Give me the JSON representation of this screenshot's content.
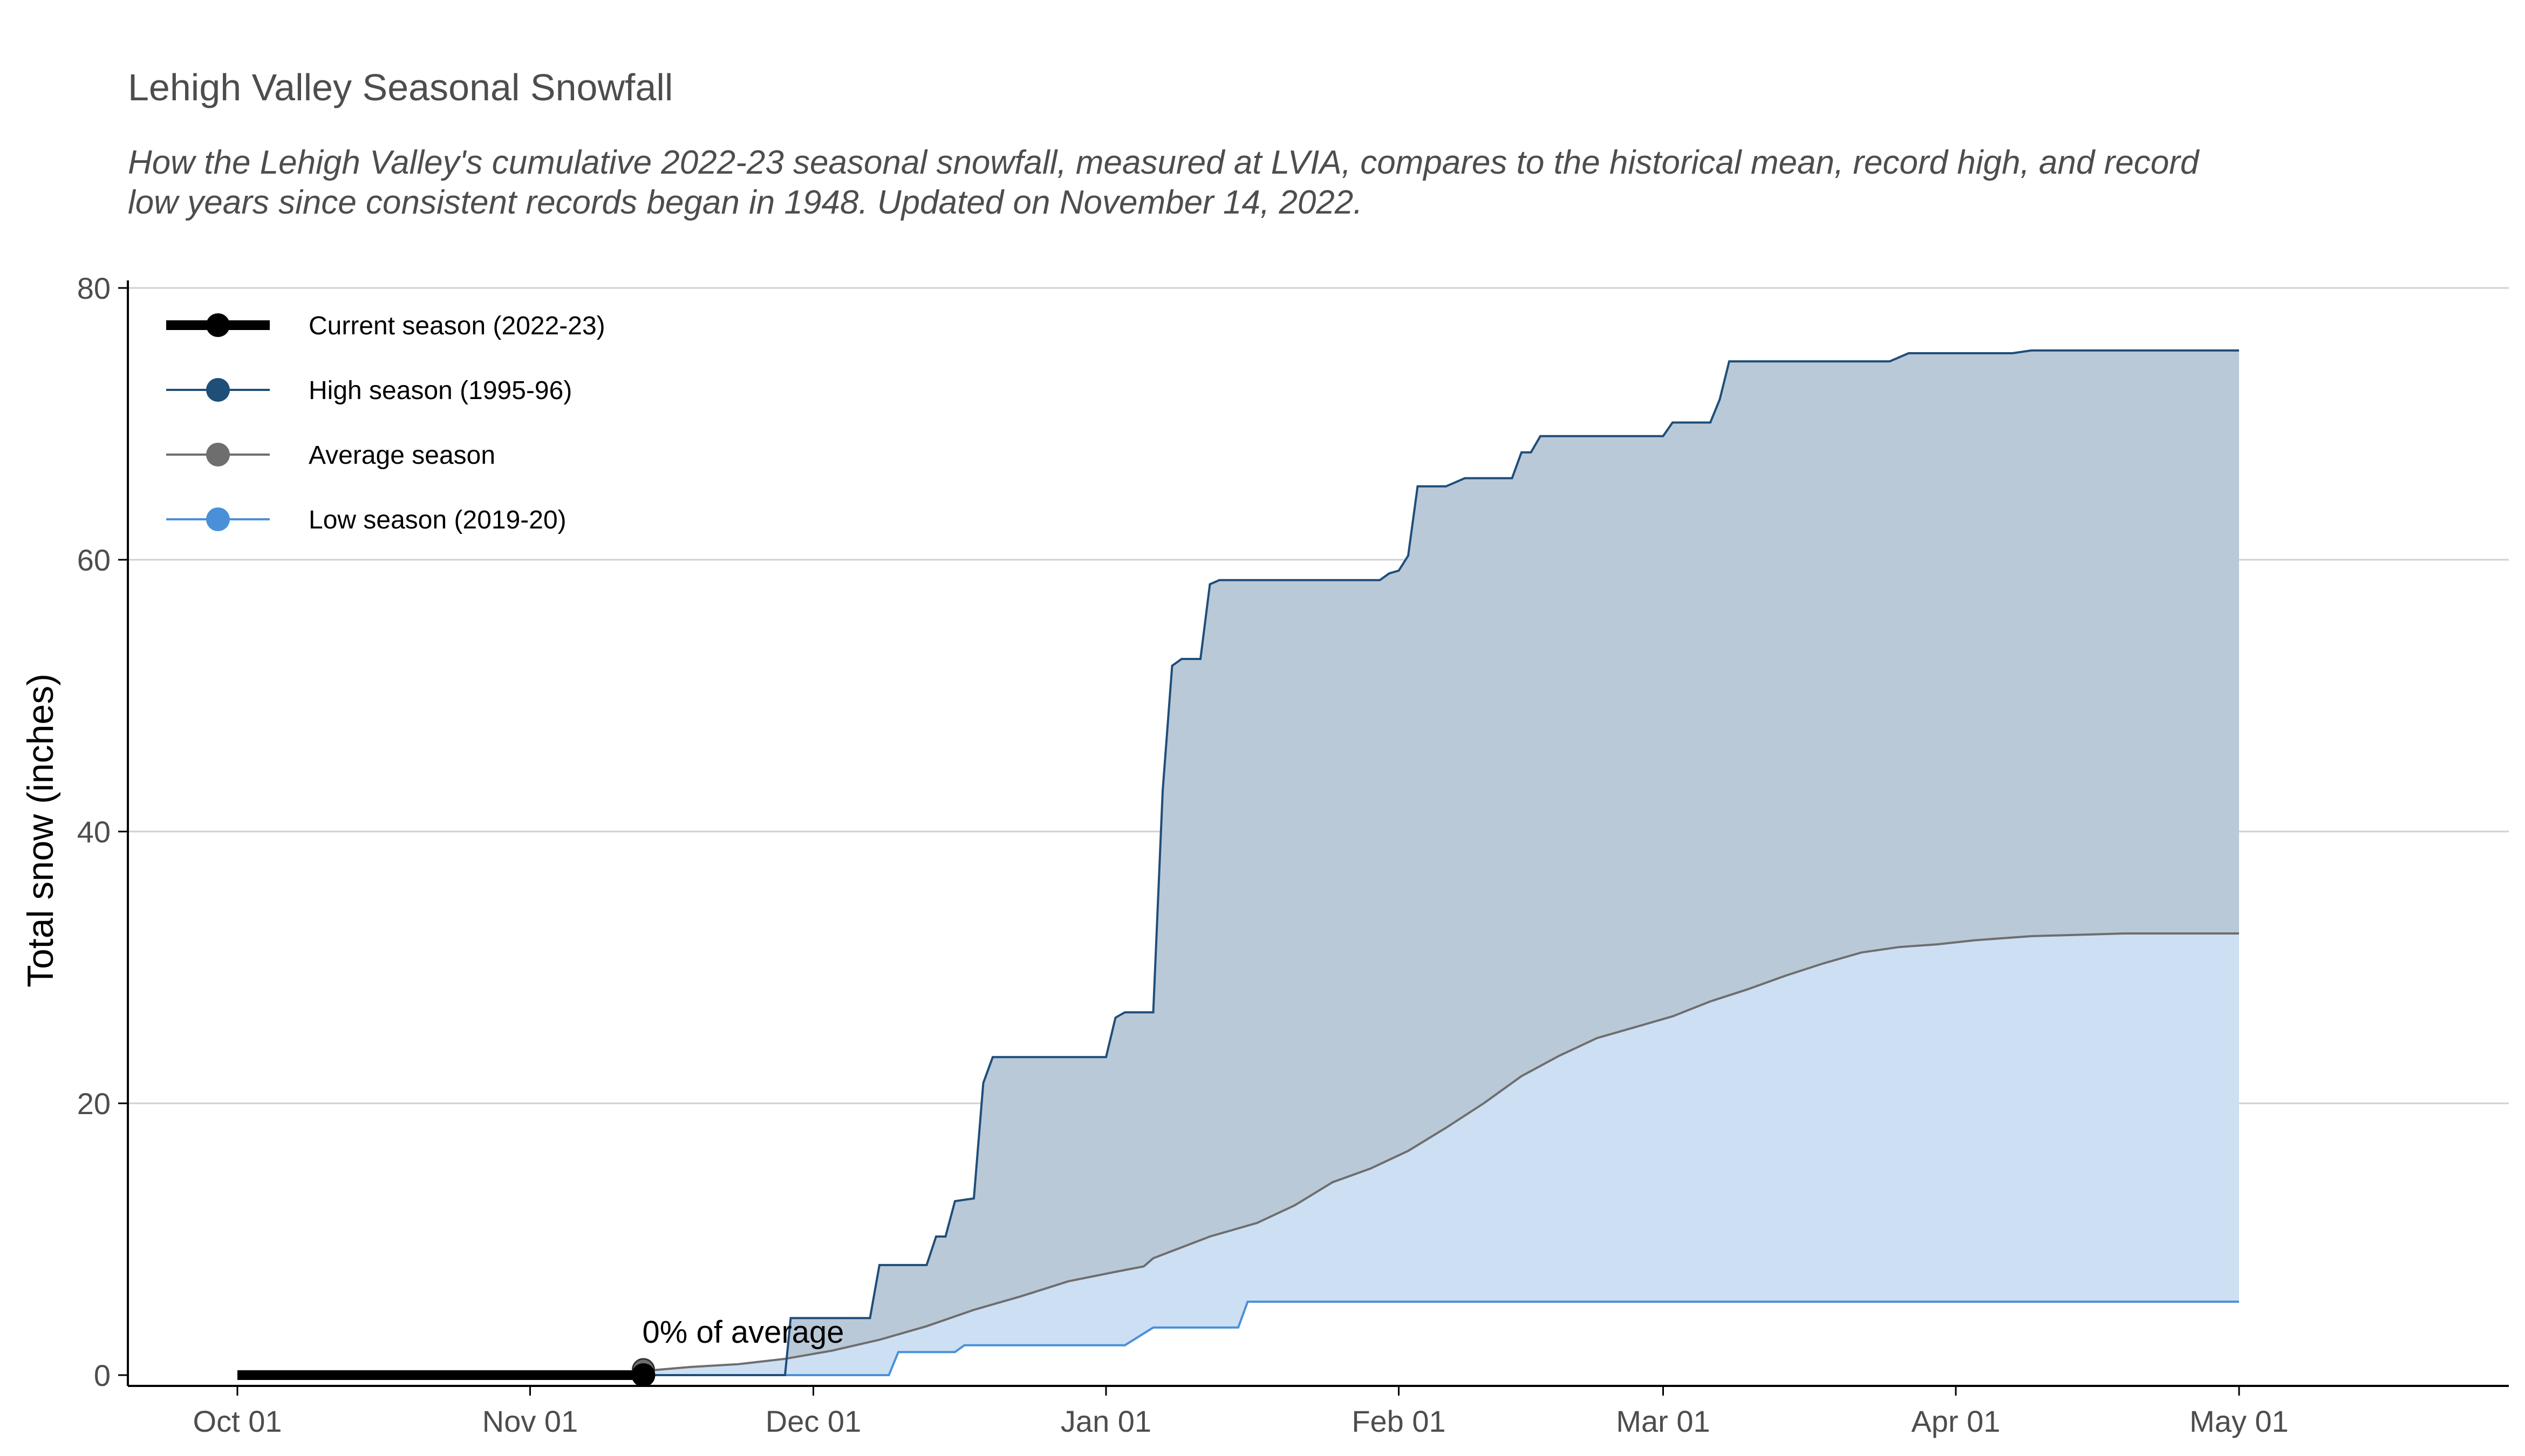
{
  "chart_data": {
    "type": "area",
    "title": "Lehigh Valley Seasonal Snowfall",
    "subtitle": "How the Lehigh Valley's cumulative 2022-23 seasonal snowfall, measured at LVIA, compares to the historical mean, record high, and record low years since consistent records began in 1948. Updated on  November 14, 2022.",
    "xlabel": "",
    "ylabel": "Total snow (inches)",
    "ylim": [
      0,
      80
    ],
    "yticks": [
      "0",
      "20",
      "40",
      "60",
      "80"
    ],
    "xticks": [
      {
        "label": "Oct 01",
        "day": 0
      },
      {
        "label": "Nov 01",
        "day": 31
      },
      {
        "label": "Dec 01",
        "day": 61
      },
      {
        "label": "Jan 01",
        "day": 92
      },
      {
        "label": "Feb 01",
        "day": 123
      },
      {
        "label": "Mar 01",
        "day": 151
      },
      {
        "label": "Apr 01",
        "day": 182
      },
      {
        "label": "May 01",
        "day": 212
      }
    ],
    "grid": "horizontal",
    "legend_position": "top-left",
    "annotation": {
      "text": "0% of average",
      "day": 43,
      "value": 0
    },
    "series": [
      {
        "name": "Current season (2022-23)",
        "color": "#000000",
        "points": [
          [
            0,
            0
          ],
          [
            43,
            0
          ]
        ]
      },
      {
        "name": "High season (1995-96)",
        "color": "#1f4e79",
        "fill": "#bac9d8",
        "points": [
          [
            0,
            0
          ],
          [
            58,
            0
          ],
          [
            58.6,
            4.2
          ],
          [
            67,
            4.2
          ],
          [
            68,
            8.1
          ],
          [
            73,
            8.1
          ],
          [
            74,
            10.2
          ],
          [
            75,
            10.2
          ],
          [
            76,
            12.8
          ],
          [
            78,
            13
          ],
          [
            79,
            21.5
          ],
          [
            80,
            23.4
          ],
          [
            92,
            23.4
          ],
          [
            93,
            26.3
          ],
          [
            94,
            26.7
          ],
          [
            97,
            26.7
          ],
          [
            98,
            43
          ],
          [
            99,
            52.2
          ],
          [
            100,
            52.7
          ],
          [
            102,
            52.7
          ],
          [
            103,
            58.2
          ],
          [
            104,
            58.5
          ],
          [
            121,
            58.5
          ],
          [
            122,
            59
          ],
          [
            123,
            59.2
          ],
          [
            124,
            60.3
          ],
          [
            125,
            65.4
          ],
          [
            128,
            65.4
          ],
          [
            130,
            66
          ],
          [
            135,
            66
          ],
          [
            136,
            67.9
          ],
          [
            137,
            67.9
          ],
          [
            138,
            69.1
          ],
          [
            151,
            69.1
          ],
          [
            152,
            70.1
          ],
          [
            156,
            70.1
          ],
          [
            157,
            71.8
          ],
          [
            158,
            74.6
          ],
          [
            175,
            74.6
          ],
          [
            177,
            75.2
          ],
          [
            188,
            75.2
          ],
          [
            190,
            75.4
          ],
          [
            212,
            75.4
          ]
        ]
      },
      {
        "name": "Average season",
        "color": "#6e6e6e",
        "fill": "#cddff3",
        "points": [
          [
            0,
            0
          ],
          [
            38,
            0
          ],
          [
            43,
            0.3
          ],
          [
            48,
            0.6
          ],
          [
            53,
            0.8
          ],
          [
            58,
            1.2
          ],
          [
            63,
            1.8
          ],
          [
            68,
            2.6
          ],
          [
            73,
            3.6
          ],
          [
            78,
            4.8
          ],
          [
            83,
            5.8
          ],
          [
            88,
            6.9
          ],
          [
            93,
            7.6
          ],
          [
            96,
            8
          ],
          [
            97,
            8.6
          ],
          [
            100,
            9.4
          ],
          [
            103,
            10.2
          ],
          [
            108,
            11.2
          ],
          [
            112,
            12.5
          ],
          [
            116,
            14.2
          ],
          [
            120,
            15.2
          ],
          [
            124,
            16.5
          ],
          [
            128,
            18.2
          ],
          [
            132,
            20
          ],
          [
            136,
            22
          ],
          [
            140,
            23.5
          ],
          [
            144,
            24.8
          ],
          [
            148,
            25.6
          ],
          [
            152,
            26.4
          ],
          [
            156,
            27.5
          ],
          [
            160,
            28.4
          ],
          [
            164,
            29.4
          ],
          [
            168,
            30.3
          ],
          [
            172,
            31.1
          ],
          [
            176,
            31.5
          ],
          [
            180,
            31.7
          ],
          [
            184,
            32
          ],
          [
            190,
            32.3
          ],
          [
            200,
            32.5
          ],
          [
            212,
            32.5
          ]
        ]
      },
      {
        "name": "Low season (2019-20)",
        "color": "#4a90d9",
        "points": [
          [
            0,
            0
          ],
          [
            69,
            0
          ],
          [
            70,
            1.7
          ],
          [
            76,
            1.7
          ],
          [
            77,
            2.2
          ],
          [
            94,
            2.2
          ],
          [
            97,
            3.5
          ],
          [
            106,
            3.5
          ],
          [
            107,
            5.4
          ],
          [
            212,
            5.4
          ]
        ]
      }
    ]
  },
  "colors": {
    "high_fill": "#bac9d8",
    "avg_fill": "#cddff3",
    "grid": "#d0d0d0",
    "axis": "#000000"
  }
}
